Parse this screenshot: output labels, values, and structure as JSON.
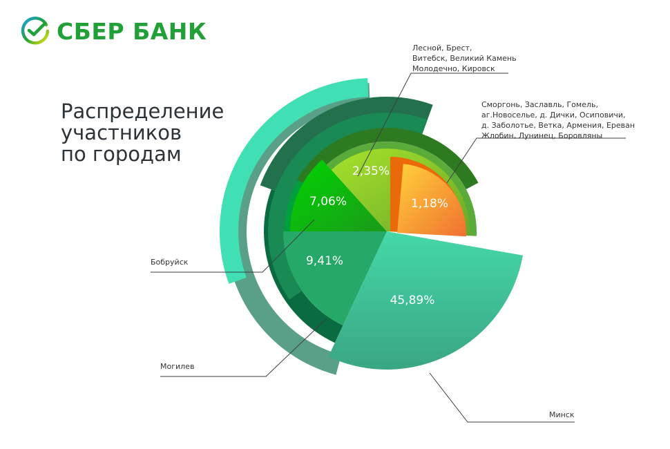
{
  "logo": {
    "text": "СБЕР БАНК"
  },
  "chart_data": {
    "type": "pie",
    "title": "Распределение\nучастников\nпо городам",
    "slices": [
      {
        "label": "Минск",
        "value": 45.89,
        "value_label": "45,89%",
        "color": "#3ecf9e"
      },
      {
        "label": "Могилев",
        "value": 9.41,
        "value_label": "9,41%",
        "color": "#26a968"
      },
      {
        "label": "Бобруйск",
        "value": 7.06,
        "value_label": "7,06%",
        "color": "#12b81c"
      },
      {
        "label": "Лесной, Брест,\nВитебск, Великий Камень\nМолодечно, Кировск",
        "value": 2.35,
        "value_label": "2,35%",
        "color": "#8fc82a"
      },
      {
        "label": "Сморгонь, Заславль, Гомель,\nаг.Новоселье, д. Дички, Осиповичи,\nд. Заболотье, Ветка, Армения, Ереван\nЖлобин, Лунинец, Боровляны",
        "value": 1.18,
        "value_label": "1,18%",
        "color": "#f59a2e"
      }
    ]
  }
}
